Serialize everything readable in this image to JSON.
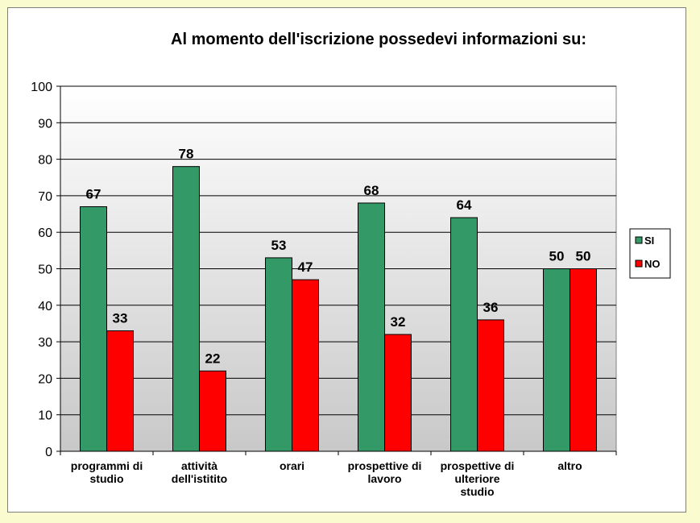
{
  "chart_data": {
    "type": "bar",
    "title": "Al momento dell'iscrizione  possedevi informazioni  su:",
    "categories": [
      [
        "programmi di",
        "studio"
      ],
      [
        "attività",
        "dell'istitito"
      ],
      [
        "orari"
      ],
      [
        "prospettive di",
        "lavoro"
      ],
      [
        "prospettive  di",
        "ulteriore",
        "studio"
      ],
      [
        "altro"
      ]
    ],
    "series": [
      {
        "name": "SI",
        "color": "#339966",
        "values": [
          67,
          78,
          53,
          68,
          64,
          50
        ]
      },
      {
        "name": "NO",
        "color": "#ff0000",
        "values": [
          33,
          22,
          47,
          32,
          36,
          50
        ]
      }
    ],
    "ylim": [
      0,
      100
    ],
    "yticks": [
      0,
      10,
      20,
      30,
      40,
      50,
      60,
      70,
      80,
      90,
      100
    ],
    "grid": true,
    "legend_position": "right",
    "background_gradient": [
      "#ffffff",
      "#c8c8c8"
    ]
  }
}
